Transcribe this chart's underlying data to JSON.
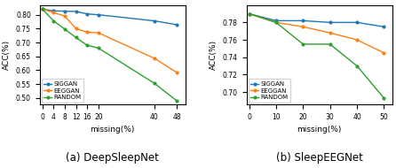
{
  "chart_a": {
    "title": "(a) DeepSleepNet",
    "xlabel": "missing(%)",
    "ylabel": "ACC(%)",
    "x": [
      0,
      4,
      8,
      12,
      16,
      20,
      40,
      48
    ],
    "siggan": [
      0.82,
      0.814,
      0.813,
      0.812,
      0.803,
      0.8,
      0.778,
      0.764
    ],
    "eeggan": [
      0.82,
      0.808,
      0.795,
      0.75,
      0.737,
      0.735,
      0.643,
      0.592
    ],
    "random": [
      0.82,
      0.778,
      0.748,
      0.718,
      0.69,
      0.68,
      0.553,
      0.49
    ],
    "ylim": [
      0.478,
      0.835
    ],
    "yticks": [
      0.5,
      0.55,
      0.6,
      0.65,
      0.7,
      0.75,
      0.8
    ],
    "xticks": [
      0,
      4,
      8,
      12,
      16,
      20,
      40,
      48
    ],
    "xlim": [
      -1,
      51
    ]
  },
  "chart_b": {
    "title": "(b) SleepEEGNet",
    "xlabel": "missing(%)",
    "ylabel": "ACC(%)",
    "x": [
      0,
      10,
      20,
      30,
      40,
      50
    ],
    "siggan": [
      0.79,
      0.782,
      0.782,
      0.78,
      0.78,
      0.775
    ],
    "eeggan": [
      0.79,
      0.78,
      0.775,
      0.768,
      0.76,
      0.745
    ],
    "random": [
      0.79,
      0.78,
      0.755,
      0.755,
      0.73,
      0.693
    ],
    "ylim": [
      0.686,
      0.8
    ],
    "yticks": [
      0.7,
      0.72,
      0.74,
      0.76,
      0.78
    ],
    "xticks": [
      0,
      10,
      20,
      30,
      40,
      50
    ],
    "xlim": [
      -1,
      53
    ]
  },
  "color_siggan": "#1f77b4",
  "color_eeggan": "#ff7f0e",
  "color_random": "#2ca02c",
  "legend_labels": [
    "SIGGAN",
    "EEGGAN",
    "RANDOM"
  ],
  "marker": ".",
  "markersize": 4,
  "linewidth": 1.0,
  "caption_fontsize": 8.5
}
